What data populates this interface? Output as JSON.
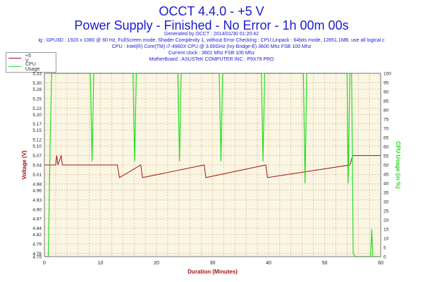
{
  "header": {
    "title": "OCCT 4.4.0 - +5 V",
    "subtitle": "Power Supply - Finished - No Error - 1h 00m 00s",
    "lines": [
      "Generated by OCCT : 2014/01/30 01:20:42",
      "ig : GPU3D : 1920 x 1080 @ 60 Hz, FullScreen mode, Shader Complexity 1, without Error Checking ; CPU:Linpack : 64bits mode, 12851.1MB, use all logical c",
      "CPU : Intel(R) Core(TM) i7-4960X CPU @ 3.60GHz (Ivy Bridge-E) 3600 Mhz FSB 100 Mhz",
      "Current clock : 3601 Mhz FSB 100 Mhz",
      "MotherBoard : ASUSTeK COMPUTER INC.: P9X79 PRO"
    ]
  },
  "legend": {
    "items": [
      {
        "label": "+5 V",
        "color": "#aa1111"
      },
      {
        "label": "CPU Usage",
        "color": "#22dd22"
      }
    ]
  },
  "chart_data": {
    "type": "line",
    "xlabel": "Duration (Minutes)",
    "ylabel_left": "Voltage (V)",
    "ylabel_right": "CPU Usage (in %)",
    "xlim": [
      0,
      60
    ],
    "ylim_left": [
      4.75,
      5.33
    ],
    "ylim_right": [
      0,
      100
    ],
    "x_ticks": [
      "0",
      "10",
      "20",
      "30",
      "40",
      "50",
      "60"
    ],
    "y_left_ticks": [
      "5.33",
      "5.30",
      "5.28",
      "5.25",
      "5.22",
      "5.20",
      "5.17",
      "5.15",
      "5.12",
      "5.10",
      "5.07",
      "5.04",
      "5.01",
      "4.98",
      "4.96",
      "4.93",
      "4.90",
      "4.87",
      "4.84",
      "4.82",
      "4.79",
      "4.76",
      "4.75"
    ],
    "y_right_ticks": [
      "100",
      "95",
      "90",
      "85",
      "80",
      "75",
      "70",
      "65",
      "60",
      "55",
      "50",
      "45",
      "40",
      "35",
      "30",
      "25",
      "20",
      "15",
      "10",
      "5",
      "0"
    ],
    "grid": true,
    "colors": {
      "plot_bg": "#fbf6e4",
      "grid": "#c9a97a",
      "voltage": "#aa1111",
      "cpu": "#22dd22",
      "axis_text": "#222222",
      "left_label": "#aa1111",
      "right_label": "#22dd22",
      "x_label": "#aa1111"
    },
    "series": [
      {
        "name": "+5 V",
        "axis": "left",
        "x": [
          0,
          0.2,
          2,
          2.2,
          2.4,
          3.0,
          3.2,
          13,
          13.4,
          17.2,
          17.5,
          28.5,
          28.8,
          39.5,
          39.8,
          54.5,
          55.0,
          60
        ],
        "y": [
          5.04,
          5.04,
          5.04,
          5.07,
          5.04,
          5.07,
          5.04,
          5.04,
          5.0,
          5.04,
          5.0,
          5.04,
          5.0,
          5.04,
          5.0,
          5.04,
          5.07,
          5.07
        ]
      },
      {
        "name": "CPU Usage",
        "axis": "right",
        "x": [
          0,
          0.7,
          1.0,
          1.3,
          8.2,
          8.5,
          8.8,
          15.8,
          16.1,
          16.4,
          23.8,
          24.1,
          24.4,
          31.2,
          31.5,
          31.8,
          38.7,
          39.0,
          39.3,
          46.2,
          46.5,
          46.8,
          54.0,
          54.2,
          54.5,
          54.8,
          55.1,
          55.4,
          58.2,
          58.4,
          58.6,
          60
        ],
        "y": [
          0,
          0,
          60,
          100,
          100,
          52,
          100,
          100,
          52,
          100,
          100,
          52,
          100,
          100,
          52,
          100,
          100,
          52,
          100,
          100,
          40,
          100,
          100,
          40,
          100,
          100,
          2,
          0,
          0,
          15,
          0,
          0
        ]
      }
    ]
  }
}
